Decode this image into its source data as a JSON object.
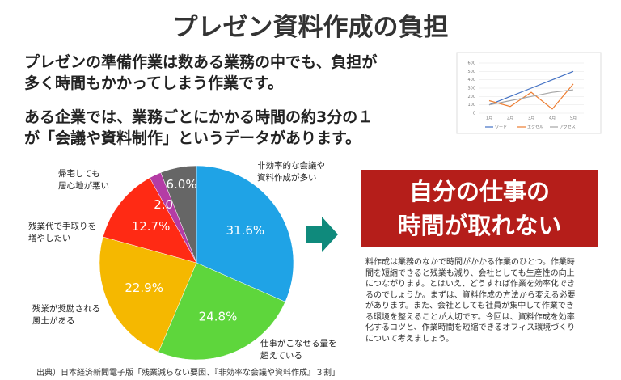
{
  "title": "プレゼン資料作成の負担",
  "lead": [
    "プレゼンの準備作業は数ある業務の中でも、負担が\n多く時間もかかってしまう作業です。",
    "ある企業では、業務ごとにかかる時間の約3分の１\nが「会議や資料制作」というデータがあります。"
  ],
  "banner": "自分の仕事の\n時間が取れない",
  "body": "料作成は業務のなかで時間がかかる作業のひとつ。作業時\n間を短縮できると残業も減り、会社としても生産性の向上\nにつながります。とはいえ、どうすれば作業を効率化でき\nるのでしょうか。まずは、資料作成の方法から変える必要\nがあります。また、会社としても社員が集中して作業でき\nる環境を整えることが大切です。今回は、資料作成を効率\n化するコツと、作業時間を短縮できるオフィス環境づくり\nについて考えましょう。",
  "source": "出典）日本経済新聞電子版「残業減らない要因、『非効率な会議や資料作成』３割」",
  "chart_data": [
    {
      "type": "pie",
      "categories": [
        "非効率的な会議や\n資料作成が多い",
        "仕事がこなせる量を\n超えている",
        "残業が奨励される\n風土がある",
        "残業代で手取りを\n増やしたい",
        "帰宅しても\n居心地が悪い",
        null
      ],
      "values": [
        31.6,
        24.8,
        22.9,
        12.7,
        2.0,
        6.0
      ],
      "value_labels": [
        "31.6%",
        "24.8%",
        "22.9%",
        "12.7%",
        "2.0%",
        "6.0%"
      ],
      "colors": [
        "#1fa3e6",
        "#5ed63c",
        "#f5b800",
        "#ff2a14",
        "#b43ca5",
        "#666666"
      ]
    },
    {
      "type": "line",
      "categories": [
        "1月",
        "2月",
        "3月",
        "4月",
        "5月"
      ],
      "ylim": [
        0,
        600
      ],
      "yticks": [
        0,
        100,
        200,
        300,
        400,
        500,
        600
      ],
      "grid": true,
      "series": [
        {
          "name": "ワード",
          "color": "#4472c4",
          "values": [
            100,
            200,
            300,
            400,
            500
          ]
        },
        {
          "name": "エクセル",
          "color": "#ed7d31",
          "values": [
            150,
            80,
            250,
            50,
            350
          ]
        },
        {
          "name": "アクセス",
          "color": "#a5a5a5",
          "values": [
            100,
            150,
            200,
            250,
            280
          ]
        }
      ]
    }
  ]
}
